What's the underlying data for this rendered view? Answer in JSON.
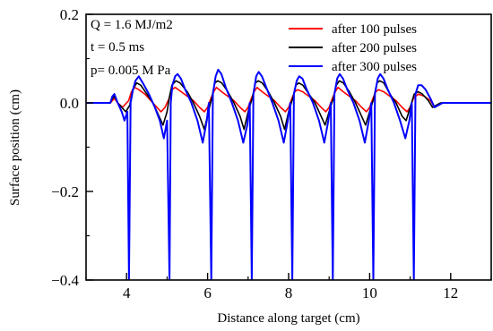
{
  "chart_data": {
    "type": "line",
    "xlabel": "Distance along target (cm)",
    "ylabel": "Surface position (cm)",
    "xlim": [
      3,
      13
    ],
    "ylim": [
      -0.4,
      0.2
    ],
    "x_ticks": [
      4,
      6,
      8,
      10,
      12
    ],
    "y_ticks": [
      0.2,
      0.0,
      -0.2,
      -0.4
    ],
    "x_tick_labels": [
      "4",
      "6",
      "8",
      "10",
      "12"
    ],
    "y_tick_labels": [
      "0.2",
      "0.0",
      "−0.2",
      "−0.4"
    ],
    "grid": false,
    "legend_position": "top-right",
    "annotations": [
      "Q = 1.6  MJ/m2",
      "t = 0.5  ms",
      "p= 0.005 M Pa"
    ],
    "series": [
      {
        "name": "after 100 pulses",
        "color": "#ff0000",
        "x": [
          3.0,
          3.6,
          3.65,
          3.7,
          3.78,
          3.9,
          4.05,
          4.12,
          4.2,
          4.3,
          4.45,
          4.6,
          4.75,
          4.85,
          4.95,
          5.05,
          5.12,
          5.2,
          5.35,
          5.5,
          5.65,
          5.8,
          5.92,
          6.0,
          6.08,
          6.15,
          6.22,
          6.35,
          6.5,
          6.65,
          6.8,
          6.92,
          7.0,
          7.08,
          7.15,
          7.22,
          7.35,
          7.5,
          7.65,
          7.8,
          7.92,
          8.0,
          8.08,
          8.15,
          8.22,
          8.35,
          8.5,
          8.65,
          8.8,
          8.92,
          9.0,
          9.08,
          9.15,
          9.22,
          9.35,
          9.5,
          9.65,
          9.8,
          9.92,
          10.0,
          10.08,
          10.15,
          10.22,
          10.35,
          10.5,
          10.65,
          10.8,
          10.92,
          11.0,
          11.08,
          11.2,
          11.35,
          11.5,
          11.6,
          11.7,
          11.8,
          13.0
        ],
        "y": [
          0.0,
          0.0,
          0.005,
          0.01,
          0.0,
          -0.01,
          0.005,
          0.025,
          0.035,
          0.03,
          0.02,
          0.005,
          -0.01,
          -0.02,
          -0.01,
          0.01,
          0.03,
          0.035,
          0.025,
          0.015,
          0.005,
          -0.01,
          -0.02,
          -0.01,
          0.01,
          0.025,
          0.035,
          0.025,
          0.015,
          0.005,
          -0.01,
          -0.02,
          -0.01,
          0.01,
          0.025,
          0.035,
          0.025,
          0.015,
          0.005,
          -0.01,
          -0.02,
          -0.01,
          0.01,
          0.025,
          0.03,
          0.025,
          0.015,
          0.005,
          -0.01,
          -0.02,
          -0.01,
          0.01,
          0.025,
          0.035,
          0.025,
          0.015,
          0.005,
          -0.01,
          -0.02,
          -0.01,
          0.01,
          0.025,
          0.03,
          0.025,
          0.015,
          0.005,
          -0.01,
          -0.02,
          -0.01,
          0.01,
          0.02,
          0.015,
          0.005,
          -0.01,
          -0.005,
          0.0,
          0.0
        ]
      },
      {
        "name": "after 200 pulses",
        "color": "#000000",
        "x": [
          3.0,
          3.6,
          3.65,
          3.7,
          3.78,
          3.88,
          3.98,
          4.08,
          4.15,
          4.25,
          4.35,
          4.5,
          4.65,
          4.8,
          4.9,
          5.0,
          5.05,
          5.12,
          5.22,
          5.32,
          5.5,
          5.65,
          5.8,
          5.92,
          6.02,
          6.1,
          6.18,
          6.25,
          6.35,
          6.5,
          6.65,
          6.8,
          6.9,
          7.0,
          7.1,
          7.18,
          7.25,
          7.35,
          7.5,
          7.65,
          7.8,
          7.9,
          8.0,
          8.1,
          8.18,
          8.25,
          8.35,
          8.5,
          8.65,
          8.8,
          8.9,
          9.0,
          9.1,
          9.18,
          9.25,
          9.35,
          9.5,
          9.65,
          9.8,
          9.9,
          10.0,
          10.1,
          10.18,
          10.25,
          10.35,
          10.5,
          10.65,
          10.8,
          10.9,
          11.0,
          11.1,
          11.2,
          11.3,
          11.45,
          11.55,
          11.65,
          11.75,
          11.85,
          13.0
        ],
        "y": [
          0.0,
          0.0,
          0.01,
          0.015,
          0.0,
          -0.01,
          -0.02,
          -0.005,
          0.03,
          0.045,
          0.04,
          0.02,
          0.0,
          -0.03,
          -0.05,
          -0.02,
          0.01,
          0.04,
          0.05,
          0.045,
          0.025,
          0.0,
          -0.03,
          -0.06,
          -0.02,
          0.01,
          0.045,
          0.05,
          0.045,
          0.025,
          0.0,
          -0.03,
          -0.06,
          -0.02,
          0.01,
          0.045,
          0.05,
          0.045,
          0.025,
          0.0,
          -0.03,
          -0.06,
          -0.02,
          0.01,
          0.04,
          0.045,
          0.04,
          0.02,
          0.0,
          -0.03,
          -0.05,
          -0.02,
          0.01,
          0.04,
          0.05,
          0.045,
          0.025,
          0.0,
          -0.03,
          -0.05,
          -0.02,
          0.01,
          0.045,
          0.05,
          0.045,
          0.02,
          0.0,
          -0.03,
          -0.04,
          -0.01,
          0.02,
          0.025,
          0.02,
          0.005,
          -0.01,
          -0.005,
          0.0,
          0.0,
          0.0
        ]
      },
      {
        "name": "after 300 pulses",
        "color": "#0000ff",
        "x": [
          3.0,
          3.6,
          3.65,
          3.7,
          3.78,
          3.88,
          3.95,
          4.02,
          4.06,
          4.1,
          4.16,
          4.22,
          4.3,
          4.4,
          4.55,
          4.7,
          4.82,
          4.92,
          5.0,
          5.06,
          5.09,
          5.13,
          5.2,
          5.26,
          5.34,
          5.45,
          5.6,
          5.75,
          5.88,
          5.98,
          6.03,
          6.09,
          6.13,
          6.2,
          6.26,
          6.34,
          6.45,
          6.6,
          6.75,
          6.88,
          6.98,
          7.04,
          7.09,
          7.13,
          7.2,
          7.26,
          7.34,
          7.45,
          7.6,
          7.75,
          7.88,
          7.98,
          8.04,
          8.09,
          8.13,
          8.2,
          8.26,
          8.34,
          8.45,
          8.6,
          8.75,
          8.88,
          8.98,
          9.04,
          9.09,
          9.13,
          9.2,
          9.26,
          9.34,
          9.45,
          9.6,
          9.75,
          9.88,
          9.98,
          10.04,
          10.09,
          10.13,
          10.2,
          10.26,
          10.34,
          10.45,
          10.6,
          10.75,
          10.88,
          10.98,
          11.04,
          11.09,
          11.13,
          11.2,
          11.28,
          11.38,
          11.5,
          11.6,
          11.7,
          11.8,
          13.0
        ],
        "y": [
          0.0,
          0.0,
          0.015,
          0.02,
          0.0,
          -0.02,
          -0.04,
          -0.02,
          -0.4,
          0.0,
          0.03,
          0.05,
          0.06,
          0.045,
          0.02,
          -0.01,
          -0.04,
          -0.08,
          -0.04,
          -0.4,
          0.0,
          0.04,
          0.06,
          0.065,
          0.055,
          0.03,
          0.0,
          -0.04,
          -0.09,
          -0.04,
          0.0,
          -0.4,
          0.02,
          0.06,
          0.075,
          0.065,
          0.035,
          0.0,
          -0.04,
          -0.09,
          -0.05,
          0.0,
          -0.4,
          0.02,
          0.06,
          0.07,
          0.06,
          0.035,
          0.0,
          -0.04,
          -0.09,
          -0.04,
          0.0,
          -0.4,
          0.02,
          0.05,
          0.06,
          0.055,
          0.03,
          0.0,
          -0.04,
          -0.09,
          -0.04,
          0.0,
          -0.4,
          0.02,
          0.055,
          0.065,
          0.055,
          0.03,
          0.0,
          -0.04,
          -0.09,
          -0.04,
          0.0,
          -0.4,
          0.02,
          0.055,
          0.065,
          0.055,
          0.03,
          0.0,
          -0.04,
          -0.08,
          -0.04,
          0.0,
          -0.4,
          0.02,
          0.04,
          0.04,
          0.03,
          0.01,
          -0.01,
          -0.005,
          0.0,
          0.0
        ]
      }
    ]
  }
}
